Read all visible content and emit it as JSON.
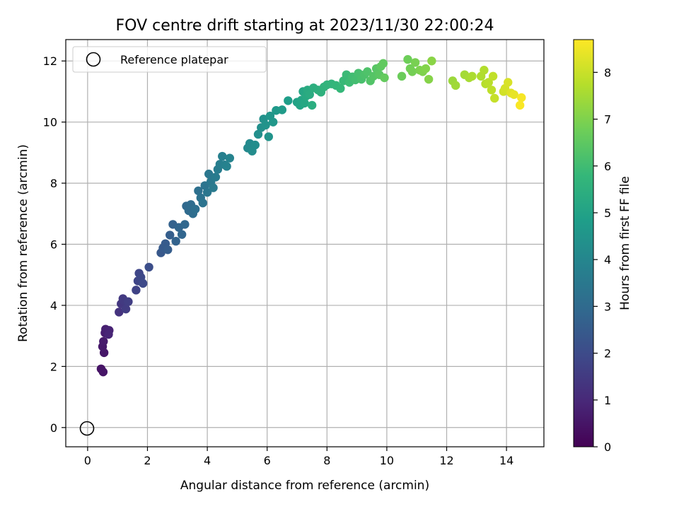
{
  "chart_data": {
    "type": "scatter",
    "title": "FOV centre drift starting at 2023/11/30 22:00:24",
    "xlabel": "Angular distance from reference (arcmin)",
    "ylabel": "Rotation from reference (arcmin)",
    "xlim": [
      -0.73,
      15.25
    ],
    "ylim": [
      -0.63,
      12.7
    ],
    "x_ticks": [
      "0",
      "2",
      "4",
      "6",
      "8",
      "10",
      "12",
      "14"
    ],
    "y_ticks": [
      "0",
      "2",
      "4",
      "6",
      "8",
      "10",
      "12"
    ],
    "grid": true,
    "legend": {
      "location": "upper left",
      "entries": [
        "Reference platepar"
      ]
    },
    "reference_point": {
      "x": 0,
      "y": 0,
      "label": "Reference platepar"
    },
    "colorbar": {
      "label": "Hours from first FF file",
      "colormap": "viridis",
      "range": [
        0,
        8.7
      ],
      "ticks": [
        "0",
        "1",
        "2",
        "3",
        "4",
        "5",
        "6",
        "7",
        "8"
      ]
    },
    "series": [
      {
        "x": [
          0.45,
          0.52,
          0.55,
          0.5,
          0.53,
          0.58,
          0.6,
          0.65,
          0.72,
          0.7,
          1.05,
          1.12,
          1.18,
          1.22,
          1.28,
          1.36,
          1.62,
          1.68,
          1.72,
          1.78,
          1.85,
          2.05,
          2.45,
          2.52,
          2.6,
          2.68,
          2.75,
          2.85,
          2.95,
          3.05,
          3.15,
          3.25,
          3.3,
          3.38,
          3.45,
          3.52,
          3.6,
          3.7,
          3.78,
          3.85,
          3.92,
          4.0,
          4.05,
          4.12,
          4.2,
          4.28,
          4.35,
          4.42,
          4.5,
          4.58,
          4.65,
          4.75,
          5.35,
          5.42,
          5.5,
          5.6,
          5.7,
          5.8,
          5.88,
          5.95,
          6.05,
          6.1,
          6.2,
          6.3,
          6.5,
          6.7,
          7.0,
          7.1,
          7.15,
          7.2,
          7.25,
          7.3,
          7.35,
          7.42,
          7.5,
          7.55,
          7.7,
          7.8,
          7.9,
          8.0,
          8.15,
          8.3,
          8.45,
          8.55,
          8.65,
          8.75,
          8.85,
          8.95,
          9.05,
          9.15,
          9.25,
          9.35,
          9.45,
          9.55,
          9.65,
          9.75,
          9.8,
          9.88,
          9.92,
          10.5,
          10.7,
          10.78,
          10.85,
          10.95,
          11.1,
          11.2,
          11.3,
          11.4,
          11.5,
          12.2,
          12.3,
          12.6,
          12.75,
          12.85,
          13.15,
          13.25,
          13.3,
          13.4,
          13.5,
          13.55,
          13.6,
          13.9,
          13.95,
          14.05,
          14.15,
          14.25,
          14.5,
          14.45
        ],
        "y": [
          1.92,
          1.82,
          2.45,
          2.65,
          2.82,
          3.1,
          3.22,
          3.15,
          3.18,
          3.05,
          3.78,
          4.05,
          4.22,
          4.15,
          3.88,
          4.12,
          4.5,
          4.8,
          5.05,
          4.92,
          4.72,
          5.25,
          5.72,
          5.88,
          6.02,
          5.82,
          6.3,
          6.65,
          6.1,
          6.55,
          6.32,
          6.65,
          7.25,
          7.1,
          7.3,
          7.0,
          7.15,
          7.75,
          7.52,
          7.35,
          7.92,
          7.7,
          8.3,
          8.05,
          7.85,
          8.2,
          8.45,
          8.62,
          8.88,
          8.6,
          8.55,
          8.82,
          9.15,
          9.3,
          9.05,
          9.25,
          9.6,
          9.82,
          10.1,
          9.9,
          9.52,
          10.2,
          10.0,
          10.38,
          10.4,
          10.7,
          10.65,
          10.55,
          10.72,
          11.0,
          10.62,
          10.85,
          11.05,
          10.9,
          10.55,
          11.12,
          11.05,
          10.98,
          11.15,
          11.22,
          11.25,
          11.2,
          11.1,
          11.35,
          11.55,
          11.3,
          11.48,
          11.38,
          11.6,
          11.4,
          11.55,
          11.65,
          11.35,
          11.5,
          11.75,
          11.55,
          11.82,
          11.92,
          11.45,
          11.5,
          12.05,
          11.75,
          11.65,
          11.95,
          11.7,
          11.65,
          11.75,
          11.4,
          12.0,
          11.35,
          11.2,
          11.55,
          11.45,
          11.5,
          11.5,
          11.7,
          11.25,
          11.3,
          11.05,
          11.5,
          10.78,
          11.0,
          11.1,
          11.3,
          10.95,
          10.9,
          10.8,
          10.55
        ],
        "t": [
          0.45,
          0.5,
          0.55,
          0.6,
          0.65,
          0.7,
          0.75,
          0.8,
          0.85,
          0.9,
          1.3,
          1.4,
          1.45,
          1.5,
          1.55,
          1.6,
          1.75,
          1.8,
          1.85,
          1.9,
          1.95,
          2.1,
          2.4,
          2.45,
          2.5,
          2.55,
          2.6,
          2.7,
          2.75,
          2.8,
          2.85,
          2.9,
          2.95,
          3.0,
          3.05,
          3.1,
          3.15,
          3.2,
          3.25,
          3.3,
          3.35,
          3.4,
          3.45,
          3.5,
          3.55,
          3.6,
          3.65,
          3.7,
          3.75,
          3.8,
          3.85,
          3.9,
          4.1,
          4.15,
          4.2,
          4.25,
          4.3,
          4.35,
          4.4,
          4.45,
          4.5,
          4.55,
          4.6,
          4.65,
          4.75,
          4.85,
          5.0,
          5.05,
          5.1,
          5.15,
          5.2,
          5.25,
          5.3,
          5.35,
          5.4,
          5.45,
          5.5,
          5.55,
          5.6,
          5.65,
          5.7,
          5.75,
          5.8,
          5.85,
          5.9,
          5.95,
          6.0,
          6.05,
          6.1,
          6.15,
          6.2,
          6.25,
          6.3,
          6.35,
          6.4,
          6.45,
          6.5,
          6.55,
          6.6,
          6.7,
          6.75,
          6.8,
          6.85,
          6.9,
          6.95,
          7.0,
          7.05,
          7.1,
          7.15,
          7.4,
          7.45,
          7.5,
          7.55,
          7.6,
          7.65,
          7.7,
          7.75,
          7.8,
          7.85,
          7.9,
          7.95,
          8.1,
          8.15,
          8.2,
          8.3,
          8.4,
          8.6,
          8.65
        ]
      }
    ]
  }
}
